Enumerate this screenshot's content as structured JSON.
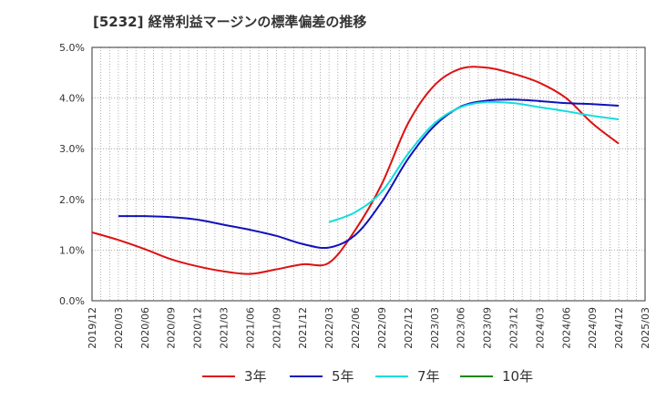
{
  "title": "[5232]  経常利益マージンの標準偏差の推移",
  "chart_data": {
    "type": "line",
    "x": [
      "2019/12",
      "2020/03",
      "2020/06",
      "2020/09",
      "2020/12",
      "2021/03",
      "2021/06",
      "2021/09",
      "2021/12",
      "2022/03",
      "2022/06",
      "2022/09",
      "2022/12",
      "2023/03",
      "2023/06",
      "2023/09",
      "2023/12",
      "2024/03",
      "2024/06",
      "2024/09",
      "2024/12",
      "2025/03"
    ],
    "y_ticks": [
      "0.0%",
      "1.0%",
      "2.0%",
      "3.0%",
      "4.0%",
      "5.0%"
    ],
    "ylim": [
      0,
      5
    ],
    "grid": true,
    "legend_position": "bottom",
    "series": [
      {
        "name": "3年",
        "color": "#dd1111",
        "points": [
          [
            "2019/12",
            1.35
          ],
          [
            "2020/03",
            1.2
          ],
          [
            "2020/06",
            1.02
          ],
          [
            "2020/09",
            0.82
          ],
          [
            "2020/12",
            0.68
          ],
          [
            "2021/03",
            0.58
          ],
          [
            "2021/06",
            0.53
          ],
          [
            "2021/09",
            0.62
          ],
          [
            "2021/12",
            0.72
          ],
          [
            "2022/03",
            0.75
          ],
          [
            "2022/06",
            1.4
          ],
          [
            "2022/09",
            2.3
          ],
          [
            "2022/12",
            3.5
          ],
          [
            "2023/03",
            4.25
          ],
          [
            "2023/06",
            4.58
          ],
          [
            "2023/09",
            4.6
          ],
          [
            "2023/12",
            4.48
          ],
          [
            "2024/03",
            4.3
          ],
          [
            "2024/06",
            4.0
          ],
          [
            "2024/09",
            3.5
          ],
          [
            "2024/12",
            3.1
          ]
        ]
      },
      {
        "name": "5年",
        "color": "#1111bb",
        "points": [
          [
            "2020/03",
            1.67
          ],
          [
            "2020/06",
            1.67
          ],
          [
            "2020/09",
            1.65
          ],
          [
            "2020/12",
            1.6
          ],
          [
            "2021/03",
            1.5
          ],
          [
            "2021/06",
            1.4
          ],
          [
            "2021/09",
            1.28
          ],
          [
            "2021/12",
            1.12
          ],
          [
            "2022/03",
            1.05
          ],
          [
            "2022/06",
            1.3
          ],
          [
            "2022/09",
            1.95
          ],
          [
            "2022/12",
            2.8
          ],
          [
            "2023/03",
            3.45
          ],
          [
            "2023/06",
            3.83
          ],
          [
            "2023/09",
            3.95
          ],
          [
            "2023/12",
            3.97
          ],
          [
            "2024/03",
            3.94
          ],
          [
            "2024/06",
            3.9
          ],
          [
            "2024/09",
            3.88
          ],
          [
            "2024/12",
            3.85
          ]
        ]
      },
      {
        "name": "7年",
        "color": "#11dddd",
        "points": [
          [
            "2022/03",
            1.55
          ],
          [
            "2022/06",
            1.75
          ],
          [
            "2022/09",
            2.15
          ],
          [
            "2022/12",
            2.9
          ],
          [
            "2023/03",
            3.5
          ],
          [
            "2023/06",
            3.82
          ],
          [
            "2023/09",
            3.92
          ],
          [
            "2023/12",
            3.9
          ],
          [
            "2024/03",
            3.82
          ],
          [
            "2024/06",
            3.74
          ],
          [
            "2024/09",
            3.65
          ],
          [
            "2024/12",
            3.58
          ]
        ]
      },
      {
        "name": "10年",
        "color": "#118811",
        "points": []
      }
    ]
  }
}
